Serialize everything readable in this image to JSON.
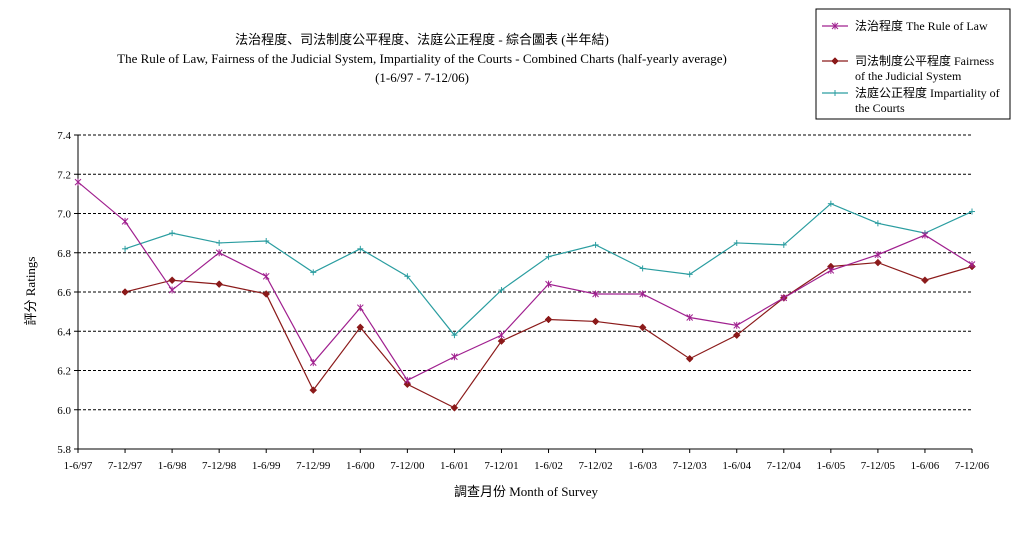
{
  "chart_data": {
    "type": "line",
    "title": [
      "法治程度、司法制度公平程度、法庭公正程度 - 綜合圖表 (半年結)",
      "The Rule of Law, Fairness of the Judicial System, Impartiality of the Courts - Combined Charts (half-yearly average)",
      "(1-6/97 - 7-12/06)"
    ],
    "xlabel": "調查月份 Month of Survey",
    "ylabel": "評分 Ratings",
    "ylim": [
      5.8,
      7.4
    ],
    "yticks": [
      "5.8",
      "6.0",
      "6.2",
      "6.4",
      "6.6",
      "6.8",
      "7.0",
      "7.2",
      "7.4"
    ],
    "grid": "horizontal dashed",
    "legend_position": "top-right",
    "categories": [
      "1-6/97",
      "7-12/97",
      "1-6/98",
      "7-12/98",
      "1-6/99",
      "7-12/99",
      "1-6/00",
      "7-12/00",
      "1-6/01",
      "7-12/01",
      "1-6/02",
      "7-12/02",
      "1-6/03",
      "7-12/03",
      "1-6/04",
      "7-12/04",
      "1-6/05",
      "7-12/05",
      "1-6/06",
      "7-12/06"
    ],
    "series": [
      {
        "name": "法治程度 The Rule of Law",
        "color": "#a0208f",
        "marker": "star",
        "values": [
          7.16,
          6.96,
          6.61,
          6.8,
          6.68,
          6.24,
          6.52,
          6.15,
          6.27,
          6.38,
          6.64,
          6.59,
          6.59,
          6.47,
          6.43,
          6.57,
          6.71,
          6.79,
          6.89,
          6.74
        ]
      },
      {
        "name": "司法制度公平程度 Fairness of the Judicial System",
        "color": "#8b1a1a",
        "marker": "diamond",
        "values": [
          null,
          6.6,
          6.66,
          6.64,
          6.59,
          6.1,
          6.42,
          6.13,
          6.01,
          6.35,
          6.46,
          6.45,
          6.42,
          6.26,
          6.38,
          6.57,
          6.73,
          6.75,
          6.66,
          6.73
        ]
      },
      {
        "name": "法庭公正程度 Impartiality of the Courts",
        "color": "#2a9da0",
        "marker": "plus",
        "values": [
          null,
          6.82,
          6.9,
          6.85,
          6.86,
          6.7,
          6.82,
          6.68,
          6.38,
          6.61,
          6.78,
          6.84,
          6.72,
          6.69,
          6.85,
          6.84,
          7.05,
          6.95,
          6.9,
          7.01
        ]
      }
    ]
  }
}
